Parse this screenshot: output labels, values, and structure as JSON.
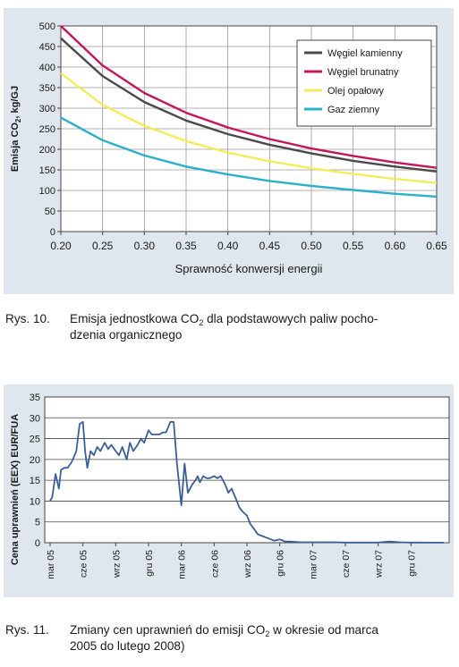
{
  "chart_data": [
    {
      "type": "line",
      "title": "",
      "xlabel": "Sprawność konwersji energii",
      "ylabel": "Emisja CO₂, kg/GJ",
      "xlim": [
        0.2,
        0.65
      ],
      "ylim": [
        0,
        500
      ],
      "x_ticks": [
        "0.20",
        "0.25",
        "0.30",
        "0.35",
        "0.40",
        "0.45",
        "0.50",
        "0.55",
        "0.60",
        "0.65"
      ],
      "y_ticks": [
        "0",
        "50",
        "100",
        "150",
        "200",
        "250",
        "300",
        "350",
        "400",
        "450",
        "500"
      ],
      "grid": true,
      "legend_position": "top-right",
      "x": [
        0.2,
        0.25,
        0.3,
        0.35,
        0.4,
        0.45,
        0.5,
        0.55,
        0.6,
        0.65
      ],
      "series": [
        {
          "name": "Węgiel kamienny",
          "color": "#4a4a4a",
          "values": [
            470,
            378,
            315,
            270,
            237,
            211,
            190,
            172,
            158,
            146
          ]
        },
        {
          "name": "Węgiel brunatny",
          "color": "#c2185b",
          "values": [
            500,
            404,
            337,
            289,
            253,
            225,
            202,
            184,
            168,
            155
          ]
        },
        {
          "name": "Olej opałowy",
          "color": "#f2ee5a",
          "values": [
            385,
            308,
            257,
            220,
            192,
            171,
            154,
            140,
            128,
            118
          ]
        },
        {
          "name": "Gaz ziemny",
          "color": "#2bb0c8",
          "values": [
            277,
            222,
            185,
            158,
            139,
            123,
            111,
            101,
            92,
            85
          ]
        }
      ]
    },
    {
      "type": "line",
      "title": "",
      "xlabel": "",
      "ylabel": "Cena uprawnień (EEX) EUR/FUA",
      "ylim": [
        0,
        35
      ],
      "y_ticks": [
        "0",
        "5",
        "10",
        "15",
        "20",
        "25",
        "30",
        "35"
      ],
      "x_ticks": [
        "mar 05",
        "cze 05",
        "wrz 05",
        "gru 05",
        "mar 06",
        "cze 06",
        "wrz 06",
        "gru 06",
        "mar 07",
        "cze 07",
        "wrz 07",
        "gru 07"
      ],
      "grid": true,
      "series": [
        {
          "name": "",
          "color": "#3a5f96",
          "x": [
            0,
            0.2,
            0.5,
            0.8,
            1.0,
            1.3,
            1.6,
            2.0,
            2.4,
            2.7,
            3.0,
            3.2,
            3.4,
            3.7,
            4.0,
            4.3,
            4.6,
            5.0,
            5.3,
            5.6,
            6.0,
            6.3,
            6.6,
            7.0,
            7.3,
            7.6,
            8.0,
            8.3,
            8.6,
            9.0,
            9.3,
            9.6,
            10.0,
            10.3,
            10.6,
            11.0,
            11.3,
            11.6,
            12.0,
            12.3,
            12.6,
            13.0,
            13.3,
            13.5,
            13.7,
            14.0,
            14.3,
            14.6,
            15.0,
            15.3,
            15.6,
            16.0,
            16.3,
            16.6,
            17.0,
            17.3,
            17.6,
            18.0,
            18.3,
            18.6,
            19.0,
            19.5,
            20.0,
            20.5,
            21.0,
            21.5,
            22.0,
            22.5,
            23.0,
            23.5,
            24.0,
            25.0,
            26.0,
            27.0,
            28.0,
            29.0,
            30.0,
            31.0,
            32.0,
            33.0,
            34.0,
            35.0,
            36.0
          ],
          "values": [
            10,
            11,
            16.5,
            13,
            17.5,
            18,
            18,
            19.5,
            22,
            28.5,
            29,
            22,
            18,
            22,
            21,
            23,
            22,
            24,
            22.5,
            23.5,
            22,
            21,
            23,
            20,
            24,
            22,
            23.5,
            25,
            24,
            27,
            26,
            26,
            26,
            26.5,
            26.5,
            29,
            29,
            19,
            9,
            19,
            12,
            14,
            15,
            16,
            14.5,
            16,
            15.5,
            15.5,
            16,
            15.5,
            16,
            14,
            12,
            13,
            10.5,
            8.5,
            7.5,
            6.5,
            4.5,
            3.5,
            2,
            1.5,
            1,
            0.5,
            0.8,
            0.3,
            0.3,
            0.2,
            0.1,
            0.1,
            0.1,
            0.1,
            0.1,
            0.05,
            0.05,
            0.05,
            0.05,
            0.3,
            0.1,
            0.05,
            0.05,
            0.02,
            0.02
          ]
        }
      ]
    }
  ],
  "captions": {
    "fig10_num": "Rys. 10.",
    "fig10_line1_pre": "Emisja jednostkowa CO",
    "fig10_line1_sub": "2",
    "fig10_line1_post": " dla podstawowych paliw pocho-",
    "fig10_line2": "dzenia organicznego",
    "fig11_num": "Rys. 11.",
    "fig11_line1_pre": "Zmiany cen uprawnień do emisji CO",
    "fig11_line1_sub": "2",
    "fig11_line1_post": " w okresie od marca",
    "fig11_line2": "2005 do lutego 2008)"
  },
  "labels": {
    "chart1_ylabel_pre": "Emisja CO",
    "chart1_ylabel_sub": "2",
    "chart1_ylabel_post": ", kg/GJ"
  }
}
